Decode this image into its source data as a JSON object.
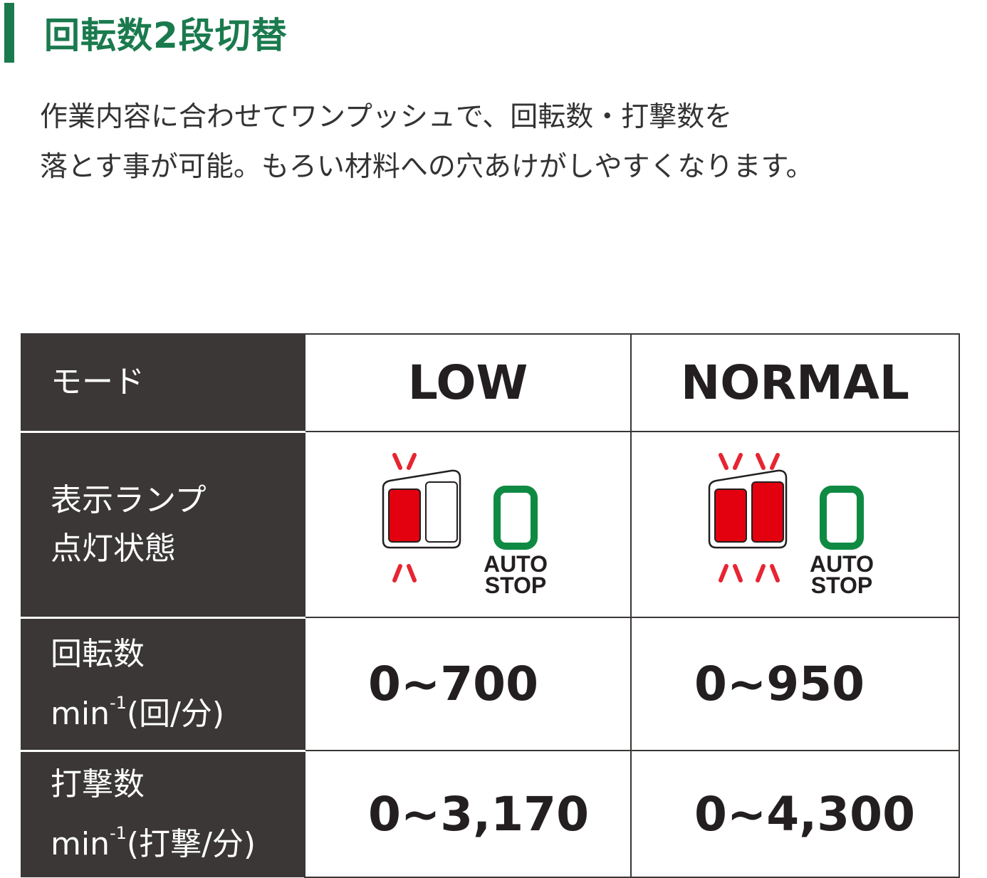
{
  "title": "回転数2段切替",
  "description": [
    "作業内容に合わせてワンプッシュで、回転数・打撃数を",
    "落とす事が可能。もろい材料への穴あけがしやすくなります。"
  ],
  "table": {
    "mode_label": "モード",
    "modes": [
      "LOW",
      "NORMAL"
    ],
    "lamp_label": [
      "表示ランプ",
      "点灯状態"
    ],
    "lamp": {
      "low_lit": 1,
      "normal_lit": 2,
      "auto_stop": "AUTO",
      "auto_stop2": "STOP",
      "red": "#e3000f",
      "green": "#0f8a43"
    },
    "rpm_label": "回転数",
    "rpm_unit": "min",
    "rpm_sup": "-1",
    "rpm_paren": "(回/分)",
    "rpm": [
      "0~700",
      "0~950"
    ],
    "ipm_label": "打撃数",
    "ipm_unit": "min",
    "ipm_sup": "-1",
    "ipm_paren": "(打撃/分)",
    "ipm": [
      "0~3,170",
      "0~4,300"
    ]
  }
}
